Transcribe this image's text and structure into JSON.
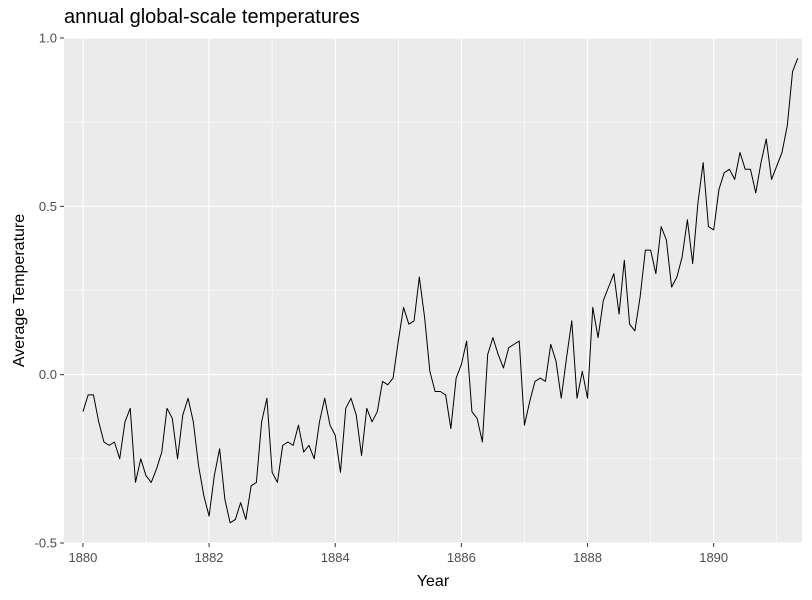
{
  "chart_data": {
    "type": "line",
    "title": "annual global-scale temperatures",
    "xlabel": "Year",
    "ylabel": "Average Temperature",
    "xlim": [
      1879.7,
      1891.4
    ],
    "ylim": [
      -0.5,
      1.0
    ],
    "x_ticks": [
      1880,
      1882,
      1884,
      1886,
      1888,
      1890
    ],
    "x_tick_labels": [
      "1880",
      "1882",
      "1884",
      "1886",
      "1888",
      "1890"
    ],
    "y_ticks": [
      -0.5,
      0.0,
      0.5,
      1.0
    ],
    "y_tick_labels": [
      "-0.5",
      "0.0",
      "0.5",
      "1.0"
    ],
    "grid": true,
    "legend": "none",
    "colors": {
      "panel": "#ebebeb",
      "grid": "#ffffff",
      "line": "#000000"
    },
    "series": [
      {
        "x": [
          1880.0,
          1880.083,
          1880.167,
          1880.25,
          1880.333,
          1880.417,
          1880.5,
          1880.583,
          1880.667,
          1880.75,
          1880.833,
          1880.917,
          1881.0,
          1881.083,
          1881.167,
          1881.25,
          1881.333,
          1881.417,
          1881.5,
          1881.583,
          1881.667,
          1881.75,
          1881.833,
          1881.917,
          1882.0,
          1882.083,
          1882.167,
          1882.25,
          1882.333,
          1882.417,
          1882.5,
          1882.583,
          1882.667,
          1882.75,
          1882.833,
          1882.917,
          1883.0,
          1883.083,
          1883.167,
          1883.25,
          1883.333,
          1883.417,
          1883.5,
          1883.583,
          1883.667,
          1883.75,
          1883.833,
          1883.917,
          1884.0,
          1884.083,
          1884.167,
          1884.25,
          1884.333,
          1884.417,
          1884.5,
          1884.583,
          1884.667,
          1884.75,
          1884.833,
          1884.917,
          1885.0,
          1885.083,
          1885.167,
          1885.25,
          1885.333,
          1885.417,
          1885.5,
          1885.583,
          1885.667,
          1885.75,
          1885.833,
          1885.917,
          1886.0,
          1886.083,
          1886.167,
          1886.25,
          1886.333,
          1886.417,
          1886.5,
          1886.583,
          1886.667,
          1886.75,
          1886.833,
          1886.917,
          1887.0,
          1887.083,
          1887.167,
          1887.25,
          1887.333,
          1887.417,
          1887.5,
          1887.583,
          1887.667,
          1887.75,
          1887.833,
          1887.917,
          1888.0,
          1888.083,
          1888.167,
          1888.25,
          1888.333,
          1888.417,
          1888.5,
          1888.583,
          1888.667,
          1888.75,
          1888.833,
          1888.917,
          1889.0,
          1889.083,
          1889.167,
          1889.25,
          1889.333,
          1889.417,
          1889.5,
          1889.583,
          1889.667,
          1889.75,
          1889.833,
          1889.917,
          1890.0,
          1890.083,
          1890.167,
          1890.25,
          1890.333,
          1890.417,
          1890.5,
          1890.583,
          1890.667,
          1890.75,
          1890.833,
          1890.917,
          1891.0,
          1891.083,
          1891.167,
          1891.25,
          1891.333
        ],
        "values": [
          -0.11,
          -0.06,
          -0.06,
          -0.14,
          -0.2,
          -0.21,
          -0.2,
          -0.25,
          -0.14,
          -0.1,
          -0.32,
          -0.25,
          -0.3,
          -0.32,
          -0.28,
          -0.23,
          -0.1,
          -0.13,
          -0.25,
          -0.12,
          -0.07,
          -0.14,
          -0.27,
          -0.36,
          -0.42,
          -0.3,
          -0.22,
          -0.37,
          -0.44,
          -0.43,
          -0.38,
          -0.43,
          -0.33,
          -0.32,
          -0.14,
          -0.07,
          -0.29,
          -0.32,
          -0.21,
          -0.2,
          -0.21,
          -0.15,
          -0.23,
          -0.21,
          -0.25,
          -0.14,
          -0.07,
          -0.15,
          -0.18,
          -0.29,
          -0.1,
          -0.07,
          -0.12,
          -0.24,
          -0.1,
          -0.14,
          -0.11,
          -0.02,
          -0.03,
          -0.01,
          0.1,
          0.2,
          0.15,
          0.16,
          0.29,
          0.17,
          0.01,
          -0.05,
          -0.05,
          -0.06,
          -0.16,
          -0.01,
          0.03,
          0.1,
          -0.11,
          -0.13,
          -0.2,
          0.06,
          0.11,
          0.06,
          0.02,
          0.08,
          0.09,
          0.1,
          -0.15,
          -0.08,
          -0.02,
          -0.01,
          -0.02,
          0.09,
          0.04,
          -0.07,
          0.05,
          0.16,
          -0.07,
          0.01,
          -0.07,
          0.2,
          0.11,
          0.22,
          0.26,
          0.3,
          0.18,
          0.34,
          0.15,
          0.13,
          0.23,
          0.37,
          0.37,
          0.3,
          0.44,
          0.4,
          0.26,
          0.29,
          0.35,
          0.46,
          0.33,
          0.51,
          0.63,
          0.44,
          0.43,
          0.55,
          0.6,
          0.61,
          0.58,
          0.66,
          0.61,
          0.61,
          0.54,
          0.63,
          0.7,
          0.58,
          0.62,
          0.66,
          0.74,
          0.9,
          0.94
        ]
      }
    ]
  }
}
